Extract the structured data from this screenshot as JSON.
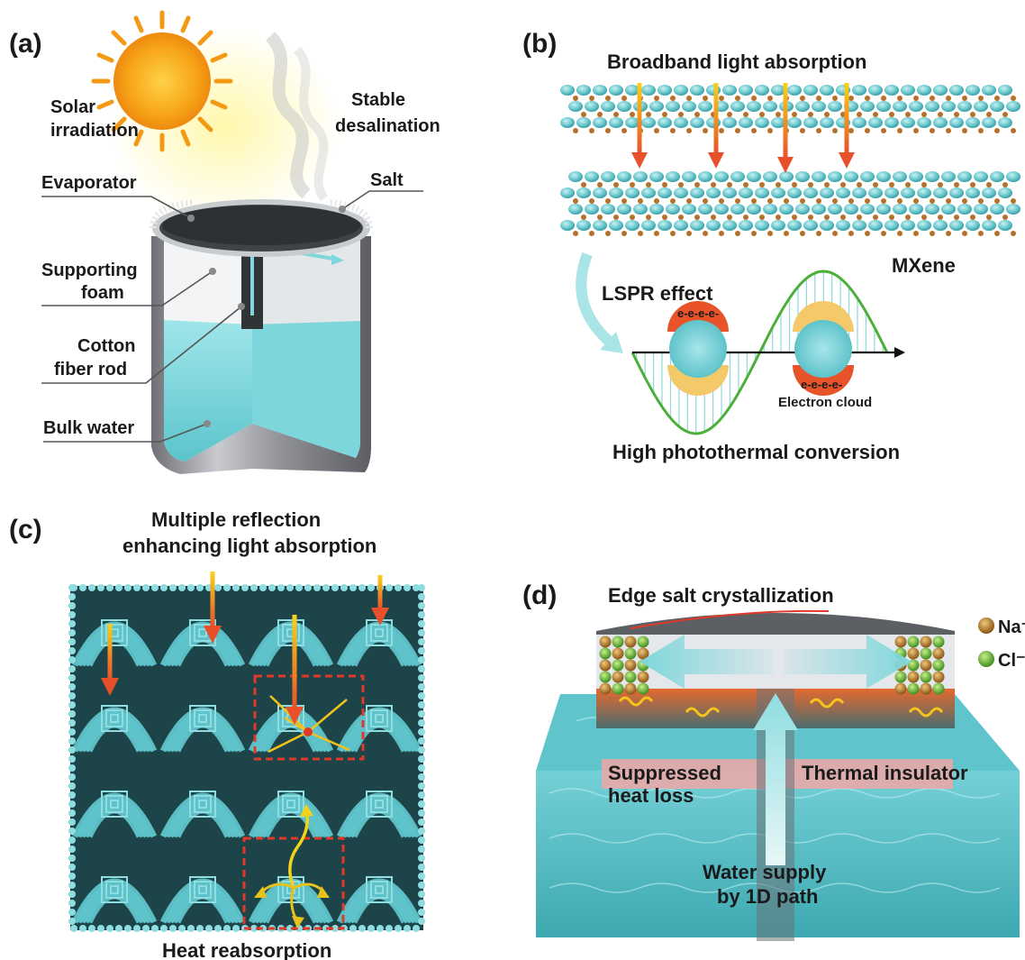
{
  "panels": {
    "a": {
      "tag": "(a)",
      "solar_line1": "Solar",
      "solar_line2": "irradiation",
      "stable_line1": "Stable",
      "stable_line2": "desalination",
      "salt": "Salt",
      "evaporator": "Evaporator",
      "support_line1": "Supporting",
      "support_line2": "foam",
      "cotton_line1": "Cotton",
      "cotton_line2": "fiber rod",
      "bulk": "Bulk water"
    },
    "b": {
      "tag": "(b)",
      "title": "Broadband light absorption",
      "mxene": "MXene",
      "lspr": "LSPR effect",
      "electrons_top": "e-e-e-e-",
      "electrons_bottom": "e-e-e-e-",
      "electron_cloud": "Electron cloud",
      "conversion": "High photothermal conversion"
    },
    "c": {
      "tag": "(c)",
      "title_line1": "Multiple reflection",
      "title_line2": "enhancing light absorption",
      "footer": "Heat reabsorption"
    },
    "d": {
      "tag": "(d)",
      "title": "Edge salt crystallization",
      "na": "Na⁺",
      "cl": "Cl⁻",
      "suppressed_line1": "Suppressed",
      "suppressed_line2": "heat loss",
      "insulator": "Thermal insulator",
      "water_line1": "Water supply",
      "water_line2": "by 1D path"
    }
  },
  "colors": {
    "cyan": "#6cc9cf",
    "dark_teal": "#1f4d52",
    "orange": "#e8632b",
    "yellow": "#f3c21b",
    "green_wave": "#4caf3a",
    "gold_ion": "#b5712b",
    "green_ion": "#6cc23a"
  },
  "icons": [
    "sun-icon",
    "vapor-icon",
    "arrow-icon"
  ]
}
